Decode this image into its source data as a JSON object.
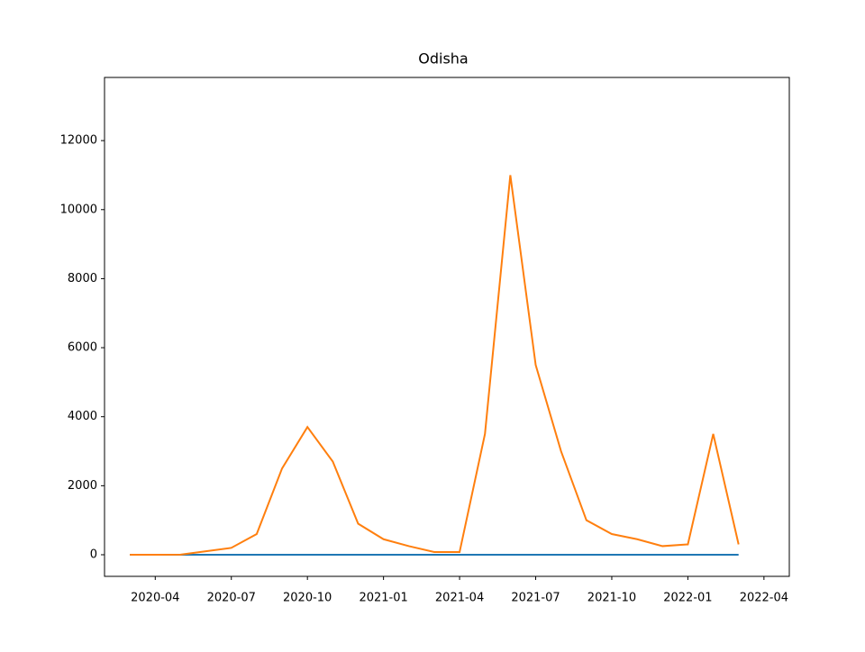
{
  "chart_data": {
    "type": "line",
    "title": "Odisha",
    "x": [
      "2020-03",
      "2020-04",
      "2020-05",
      "2020-06",
      "2020-07",
      "2020-08",
      "2020-09",
      "2020-10",
      "2020-11",
      "2020-12",
      "2021-01",
      "2021-02",
      "2021-03",
      "2021-04",
      "2021-05",
      "2021-06",
      "2021-07",
      "2021-08",
      "2021-09",
      "2021-10",
      "2021-11",
      "2021-12",
      "2022-01",
      "2022-02",
      "2022-03"
    ],
    "series": [
      {
        "color": "#1f77b4",
        "values": [
          0,
          0,
          0,
          0,
          0,
          0,
          0,
          0,
          0,
          0,
          0,
          0,
          0,
          0,
          0,
          0,
          0,
          0,
          0,
          0,
          0,
          0,
          0,
          0,
          0
        ]
      },
      {
        "color": "#ff7f0e",
        "values": [
          0,
          0,
          5,
          100,
          200,
          600,
          2500,
          3700,
          2700,
          900,
          450,
          250,
          80,
          80,
          3500,
          11000,
          5500,
          3000,
          1000,
          600,
          450,
          250,
          300,
          3500,
          300
        ]
      }
    ],
    "xlim": [
      "2020-02",
      "2022-05"
    ],
    "xticks": [
      "2020-04",
      "2020-07",
      "2020-10",
      "2021-01",
      "2021-04",
      "2021-07",
      "2021-10",
      "2022-01",
      "2022-04"
    ],
    "ylim": [
      -626,
      13830
    ],
    "yticks": [
      0,
      2000,
      4000,
      6000,
      8000,
      10000,
      12000
    ]
  }
}
